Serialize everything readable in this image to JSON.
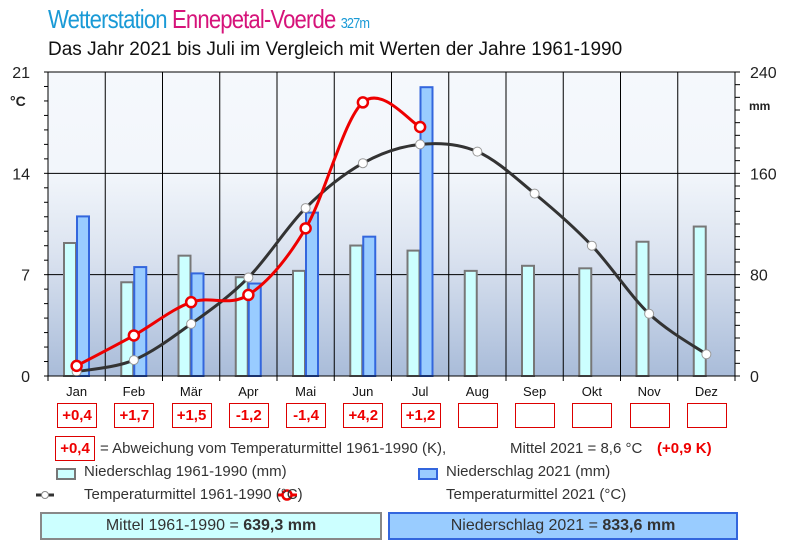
{
  "header": {
    "title_part1": "Wetterstation",
    "title_part2": "Ennepetal-Voerde",
    "altitude": "327m",
    "subtitle": "Das Jahr 2021 bis Juli im Vergleich mit Werten der Jahre 1961-1990"
  },
  "chart_data": {
    "type": "bar+line",
    "categories": [
      "Jan",
      "Feb",
      "Mär",
      "Apr",
      "Mai",
      "Jun",
      "Jul",
      "Aug",
      "Sep",
      "Okt",
      "Nov",
      "Dez"
    ],
    "left_axis": {
      "unit": "°C",
      "range": [
        0,
        21
      ],
      "ticks": [
        "0",
        "7",
        "14",
        "21"
      ]
    },
    "right_axis": {
      "unit": "mm",
      "range": [
        0,
        240
      ],
      "ticks": [
        "0",
        "80",
        "160",
        "240"
      ]
    },
    "grid": true,
    "series": [
      {
        "name": "Niederschlag 1961-1990 (mm)",
        "kind": "bar",
        "axis": "right",
        "color": "#ccffff",
        "values": [
          105,
          74,
          95,
          78,
          83,
          103,
          99,
          83,
          87,
          85,
          106,
          118
        ]
      },
      {
        "name": "Niederschlag 2021 (mm)",
        "kind": "bar",
        "axis": "right",
        "color": "#99ccff",
        "values": [
          126,
          86,
          81,
          73,
          129,
          110,
          228,
          null,
          null,
          null,
          null,
          null
        ]
      },
      {
        "name": "Temperaturmittel 1961-1990 (°C)",
        "kind": "line",
        "axis": "left",
        "color": "#333333",
        "values": [
          0.3,
          1.1,
          3.6,
          6.8,
          11.6,
          14.7,
          16.0,
          15.5,
          12.6,
          9.0,
          4.3,
          1.5
        ]
      },
      {
        "name": "Temperaturmittel 2021 (°C)",
        "kind": "line",
        "axis": "left",
        "color": "#ee0000",
        "values": [
          0.7,
          2.8,
          5.1,
          5.6,
          10.2,
          18.9,
          17.2,
          null,
          null,
          null,
          null,
          null
        ]
      }
    ],
    "deviations": [
      "+0,4",
      "+1,7",
      "+1,5",
      "-1,2",
      "-1,4",
      "+4,2",
      "+1,2",
      "",
      "",
      "",
      "",
      ""
    ]
  },
  "legend": {
    "dev_sample": "+0,4",
    "dev_text": "= Abweichung vom Temperaturmittel 1961-1990 (K),",
    "mean_text": "Mittel 2021 = 8,6 °C",
    "mean_dev": "(+0,9 K)",
    "old_precip": "Niederschlag 1961-1990 (mm)",
    "new_precip": "Niederschlag 2021 (mm)",
    "old_temp": "Temperaturmittel 1961-1990 (°C)",
    "new_temp": "Temperaturmittel 2021 (°C)"
  },
  "totals": {
    "old_label": "Mittel 1961-1990 = ",
    "old_value": "639,3 mm",
    "new_label": "Niederschlag 2021 = ",
    "new_value": "833,6 mm"
  }
}
